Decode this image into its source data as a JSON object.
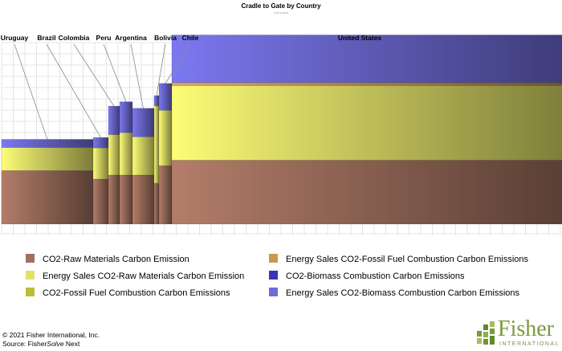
{
  "chart_data": {
    "type": "bar",
    "variant": "variable-width stacked bar (marimekko)",
    "title": "Cradle to Gate by Country",
    "subtitle": "Kraft Solid-Bl",
    "xlabel": "",
    "ylabel": "",
    "ylim": [
      0,
      10
    ],
    "grid": true,
    "categories": [
      "Uruguay",
      "Brazil",
      "Colombia",
      "Peru",
      "Argentina",
      "Bolivia",
      "Chile",
      "United States"
    ],
    "widths": [
      114,
      19,
      14,
      16,
      27,
      6,
      16,
      497
    ],
    "series": [
      {
        "name": "CO2-Raw Materials Carbon Emission",
        "color": "#a0705e",
        "values": [
          2.95,
          2.48,
          2.7,
          2.7,
          2.7,
          2.25,
          3.22,
          3.52
        ]
      },
      {
        "name": "Energy Sales CO2-Raw Materials Carbon Emission",
        "color": "#e2e26a",
        "values": [
          1.27,
          1.72,
          2.23,
          2.34,
          2.11,
          4.26,
          3.05,
          4.11
        ]
      },
      {
        "name": "CO2-Fossil Fuel Combustion Carbon Emissions",
        "color": "#bcbd3a",
        "values": [
          0,
          0,
          0,
          0,
          0,
          0,
          0,
          0
        ]
      },
      {
        "name": "Energy Sales CO2-Fossil Fuel Combustion Carbon Emissions",
        "color": "#c8984f",
        "values": [
          0,
          0,
          0,
          0,
          0,
          0,
          0,
          0.16
        ]
      },
      {
        "name": "CO2-Biomass Combustion Carbon Emissions",
        "color": "#3a35b5",
        "values": [
          0,
          0,
          0,
          0,
          0,
          0,
          0,
          0
        ]
      },
      {
        "name": "Energy Sales CO2-Biomass Combustion Carbon Emissions",
        "color": "#6f6bd6",
        "values": [
          0.45,
          0.57,
          1.57,
          1.7,
          1.57,
          0.57,
          1.48,
          2.63
        ]
      }
    ],
    "legend_placement": "bottom",
    "legend_order": [
      0,
      3,
      1,
      4,
      2,
      5
    ]
  },
  "footer": {
    "copyright": "© 2021 Fisher International, Inc.",
    "source_prefix": "Source: Fisher",
    "source_italic": "Solve",
    "source_suffix": " Next"
  },
  "logo": {
    "word": "Fisher",
    "sub": "INTERNATIONAL",
    "color": "#7a9a3a"
  }
}
